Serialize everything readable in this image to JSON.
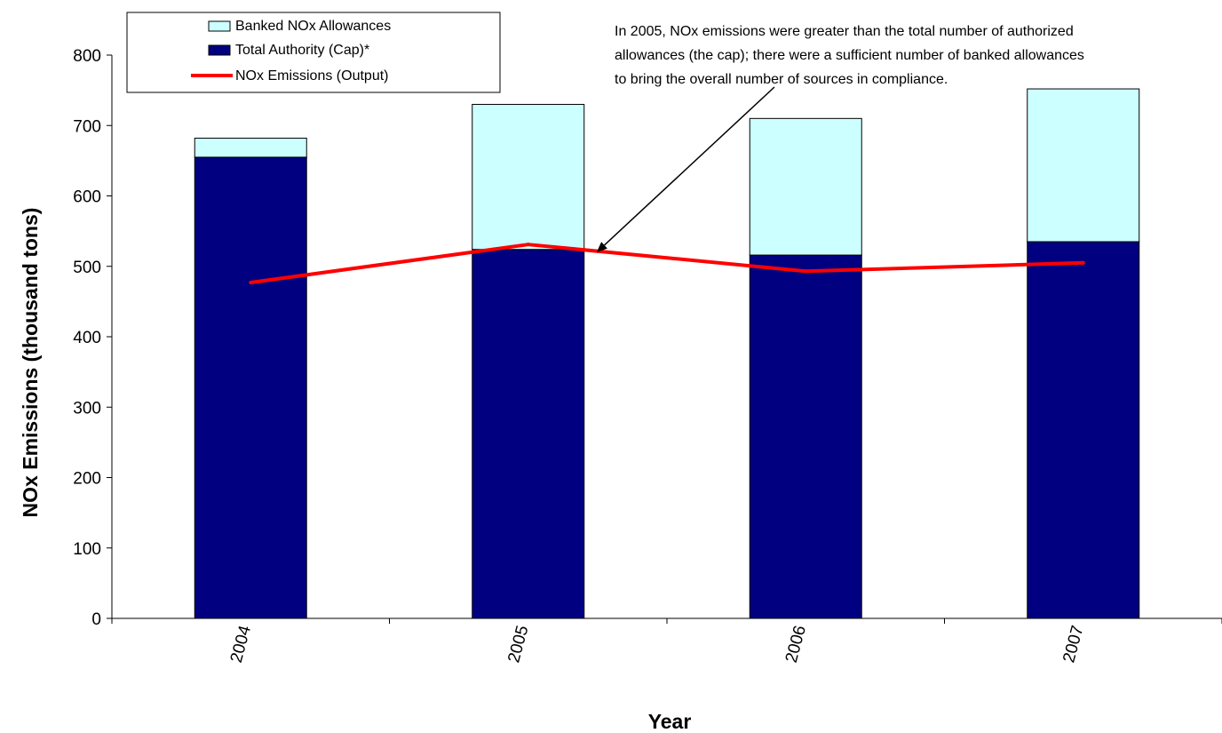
{
  "chart_data": {
    "type": "bar",
    "stacked": true,
    "xlabel": "Year",
    "ylabel": "NOx Emissions (thousand tons)",
    "ylim": [
      0,
      800
    ],
    "yticks": [
      0,
      100,
      200,
      300,
      400,
      500,
      600,
      700,
      800
    ],
    "categories": [
      "2004",
      "2005",
      "2006",
      "2007"
    ],
    "series": [
      {
        "name": "Total Authority (Cap)*",
        "kind": "bar",
        "color": "#000080",
        "values": [
          655,
          524,
          516,
          535
        ]
      },
      {
        "name": "Banked NOx Allowances",
        "kind": "bar",
        "color": "#ccffff",
        "values": [
          27,
          206,
          194,
          217
        ]
      },
      {
        "name": "NOx Emissions (Output)",
        "kind": "line",
        "color": "#ff0000",
        "values": [
          477,
          531,
          493,
          505
        ]
      }
    ],
    "legend": {
      "placement": "top-left",
      "entries": [
        "Banked NOx Allowances",
        "Total Authority (Cap)*",
        "NOx Emissions (Output)"
      ]
    },
    "annotation": {
      "lines": [
        "In 2005, NOx emissions were greater than the total number of authorized",
        "allowances (the cap); there were a sufficient number of banked allowances",
        "to bring the overall number of sources in compliance."
      ],
      "points_to": {
        "category": "2005",
        "value": 545
      }
    },
    "grid": false
  }
}
